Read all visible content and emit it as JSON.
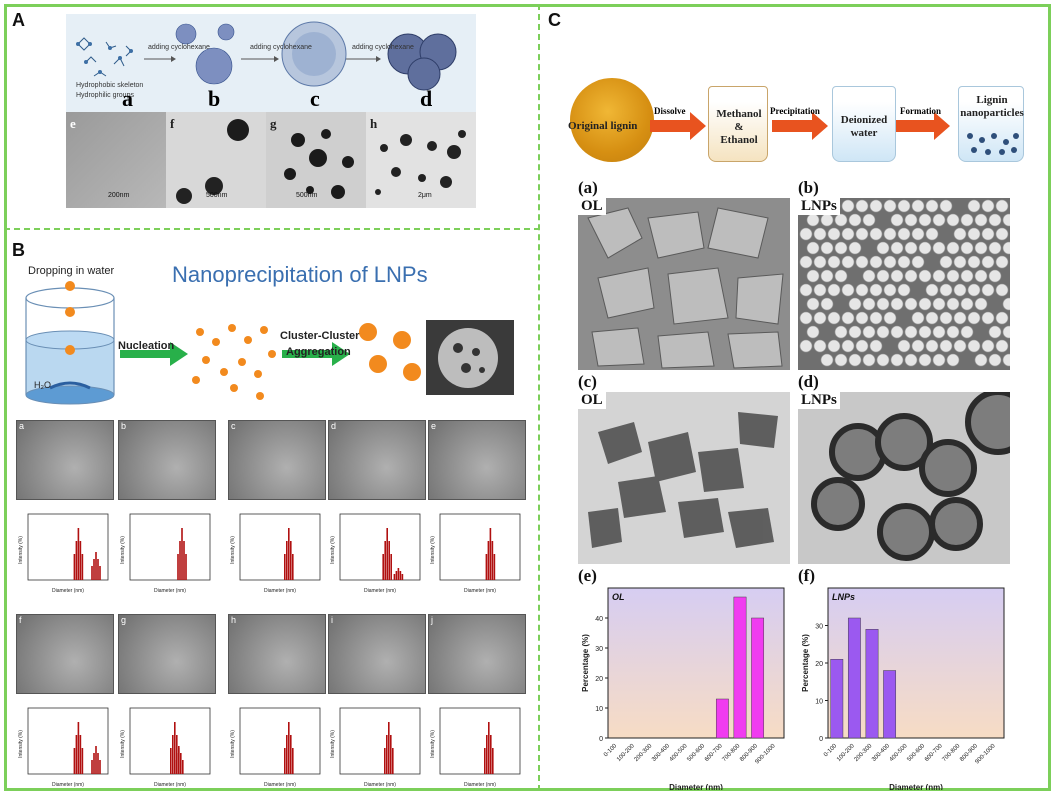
{
  "panels": {
    "a": "A",
    "b": "B",
    "c": "C"
  },
  "panelA": {
    "step_text": "adding cyclohexane",
    "legend": [
      "Hydrophobic skeleton",
      "Hydrophilic groups"
    ],
    "stage_labels": [
      "a",
      "b",
      "c",
      "d"
    ],
    "tem_labels": [
      "e",
      "f",
      "g",
      "h"
    ],
    "scales": [
      "200nm",
      "500nm",
      "500nm",
      "2μm"
    ]
  },
  "panelB": {
    "title": "Nanoprecipitation of LNPs",
    "dropping": "Dropping in water",
    "water": "H₂O",
    "step1": "Nucleation",
    "step2a": "Cluster-Cluster",
    "step2b": "Aggregation",
    "row1_labels": [
      "a",
      "b",
      "c",
      "d",
      "e"
    ],
    "row2_labels": [
      "f",
      "g",
      "h",
      "i",
      "j"
    ],
    "mini_xlabel": "Diameter (nm)",
    "mini_ylabel": "Intensity (%)"
  },
  "panelC": {
    "flow": {
      "original": "Original lignin",
      "dissolve": "Dissolve",
      "beaker1_line1": "Methanol",
      "beaker1_line2": "&",
      "beaker1_line3": "Ethanol",
      "precip": "Precipitation",
      "beaker2_line1": "Deionized",
      "beaker2_line2": "water",
      "formation": "Formation",
      "beaker3_line1": "Lignin",
      "beaker3_line2": "nanoparticles"
    },
    "sub": {
      "a": "(a)",
      "b": "(b)",
      "c": "(c)",
      "d": "(d)",
      "e": "(e)",
      "f": "(f)"
    },
    "img_labels": {
      "a": "OL",
      "b": "LNPs",
      "c": "OL",
      "d": "LNPs"
    }
  },
  "chart_data": [
    {
      "type": "bar",
      "title": "OL",
      "xlabel": "Diameter (nm)",
      "ylabel": "Percentage (%)",
      "categories": [
        "0-100",
        "100-200",
        "200-300",
        "300-400",
        "400-500",
        "500-600",
        "600-700",
        "700-800",
        "800-900",
        "900-1000"
      ],
      "values": [
        0,
        0,
        0,
        0,
        0,
        0,
        13,
        47,
        40,
        0
      ],
      "ylim": [
        0,
        50
      ],
      "yticks": [
        0,
        10,
        20,
        30,
        40
      ],
      "color": "#f03cf0",
      "note": ""
    },
    {
      "type": "bar",
      "title": "LNPs",
      "xlabel": "Diameter (nm)",
      "ylabel": "Percentage (%)",
      "categories": [
        "0-100",
        "100-200",
        "200-300",
        "300-400",
        "400-500",
        "500-600",
        "600-700",
        "700-800",
        "800-900",
        "900-1000"
      ],
      "values": [
        21,
        32,
        29,
        18,
        0,
        0,
        0,
        0,
        0,
        0
      ],
      "ylim": [
        0,
        40
      ],
      "yticks": [
        0,
        10,
        20,
        30
      ],
      "color": "#9b59f0"
    }
  ],
  "chart_vals_extra": {
    "ol_last": 40
  }
}
